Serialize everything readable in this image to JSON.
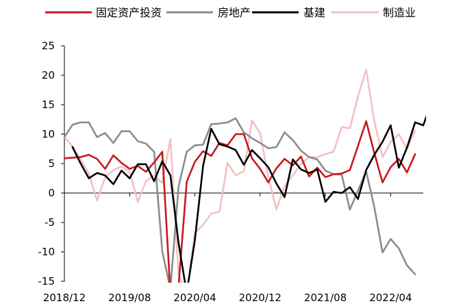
{
  "chart_data": {
    "type": "line",
    "title": "",
    "xlabel": "",
    "ylabel": "",
    "ylim": [
      -15,
      25
    ],
    "yticks": [
      -15,
      -10,
      -5,
      0,
      5,
      10,
      15,
      20,
      25
    ],
    "x": [
      "2018/12",
      "2019/01",
      "2019/02",
      "2019/03",
      "2019/04",
      "2019/05",
      "2019/06",
      "2019/07",
      "2019/08",
      "2019/09",
      "2019/10",
      "2019/11",
      "2019/12",
      "2020/01",
      "2020/02",
      "2020/03",
      "2020/04",
      "2020/05",
      "2020/06",
      "2020/07",
      "2020/08",
      "2020/09",
      "2020/10",
      "2020/11",
      "2020/12",
      "2021/01",
      "2021/02",
      "2021/03",
      "2021/04",
      "2021/05",
      "2021/06",
      "2021/07",
      "2021/08",
      "2021/09",
      "2021/10",
      "2021/11",
      "2021/12",
      "2022/01",
      "2022/02",
      "2022/03",
      "2022/04",
      "2022/05",
      "2022/06",
      "2022/07",
      "2022/08"
    ],
    "x_tick_labels": [
      "2018/12",
      "2019/08",
      "2020/04",
      "2020/12",
      "2021/08",
      "2022/04"
    ],
    "x_tick_indices": [
      0,
      8,
      16,
      24,
      32,
      40
    ],
    "grid": false,
    "legend_position": "top",
    "series": [
      {
        "name": "固定资产投资",
        "color": "#c8191c",
        "values": [
          5.9,
          6.0,
          6.1,
          6.5,
          5.8,
          4.1,
          6.4,
          5.1,
          4.1,
          4.6,
          3.6,
          5.2,
          7.0,
          -17.0,
          -15.8,
          1.9,
          5.3,
          7.1,
          6.3,
          8.5,
          8.1,
          10.0,
          10.0,
          5.9,
          4.1,
          1.8,
          4.2,
          5.8,
          4.7,
          6.2,
          2.8,
          4.3,
          2.7,
          3.2,
          3.3,
          3.9,
          8.0,
          12.2,
          6.8,
          1.8,
          4.4,
          5.8,
          3.5,
          6.6,
          null
        ],
        "x_offset": 0
      },
      {
        "name": "房地产",
        "color": "#8c8c8c",
        "values": [
          9.5,
          11.6,
          12.0,
          12.0,
          9.5,
          10.2,
          8.5,
          10.5,
          10.5,
          8.8,
          8.4,
          7.0,
          -9.9,
          -16.3,
          1.1,
          7.0,
          8.1,
          8.2,
          11.7,
          11.8,
          12.0,
          12.7,
          10.3,
          9.3,
          8.5,
          7.6,
          7.8,
          10.3,
          9.0,
          7.2,
          6.1,
          5.7,
          3.8,
          3.2,
          3.1,
          -2.8,
          0.4,
          3.7,
          -2.4,
          -10.1,
          -7.8,
          -9.4,
          -12.3,
          -13.8,
          null
        ],
        "x_offset": 0
      },
      {
        "name": "基建",
        "color": "#000000",
        "values": [
          7.8,
          5.0,
          2.5,
          3.4,
          3.0,
          1.5,
          3.8,
          2.5,
          4.9,
          4.9,
          2.0,
          5.4,
          3.0,
          -8.5,
          -17.0,
          -8.0,
          4.6,
          10.9,
          8.3,
          7.9,
          7.3,
          4.8,
          7.3,
          5.9,
          4.4,
          1.6,
          -0.7,
          5.7,
          4.0,
          3.4,
          4.0,
          -1.5,
          0.2,
          0.0,
          1.0,
          -1.0,
          3.9,
          6.5,
          8.7,
          11.5,
          4.3,
          7.7,
          12.0,
          11.5,
          15.4
        ],
        "x_offset": 1
      },
      {
        "name": "制造业",
        "color": "#f4c0c4",
        "values": [
          9.5,
          7.9,
          5.7,
          3.3,
          -1.3,
          2.7,
          3.9,
          4.5,
          3.6,
          -1.5,
          2.0,
          3.0,
          1.7,
          9.2,
          -13.9,
          -17.0,
          -6.8,
          -5.4,
          -3.5,
          -3.2,
          5.1,
          3.0,
          3.7,
          12.3,
          10.2,
          2.7,
          -2.8,
          1.2,
          3.0,
          4.9,
          6.1,
          6.1,
          6.6,
          7.0,
          11.2,
          11.0,
          16.4,
          21.0,
          12.2,
          6.1,
          8.7,
          10.0,
          7.5,
          10.6,
          null
        ],
        "x_offset": 0
      }
    ]
  }
}
